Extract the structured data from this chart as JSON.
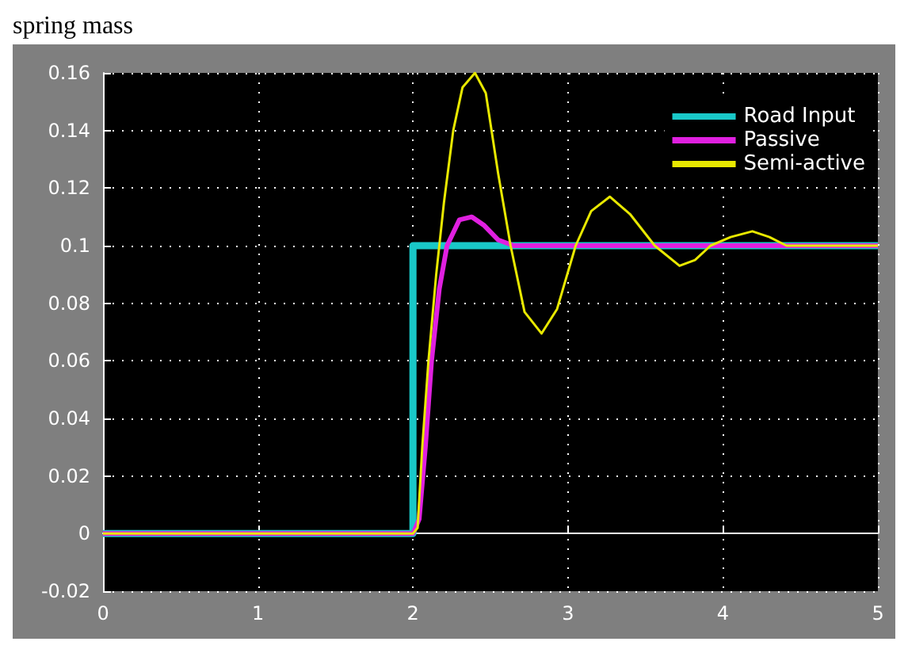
{
  "chart_data": {
    "type": "line",
    "title": "spring mass",
    "series": [
      {
        "name": "Road Input",
        "color": "#19c8c8",
        "x": [
          0,
          2,
          2,
          5
        ],
        "values": [
          0,
          0,
          0.1,
          0.1
        ]
      },
      {
        "name": "Passive",
        "color": "#e020e0",
        "x": [
          0,
          2,
          2.04,
          2.08,
          2.12,
          2.17,
          2.22,
          2.3,
          2.38,
          2.46,
          2.55,
          2.65,
          5
        ],
        "values": [
          0,
          0,
          0.005,
          0.03,
          0.06,
          0.085,
          0.1,
          0.109,
          0.11,
          0.107,
          0.102,
          0.1,
          0.1
        ]
      },
      {
        "name": "Semi-active",
        "color": "#e8e800",
        "x": [
          0,
          2,
          2.03,
          2.06,
          2.1,
          2.15,
          2.2,
          2.26,
          2.32,
          2.4,
          2.47,
          2.55,
          2.63,
          2.72,
          2.83,
          2.93,
          3.05,
          3.15,
          3.27,
          3.4,
          3.56,
          3.72,
          3.82,
          3.92,
          4.05,
          4.19,
          4.3,
          4.41,
          5
        ],
        "values": [
          0,
          0,
          0.002,
          0.03,
          0.06,
          0.09,
          0.115,
          0.14,
          0.155,
          0.16,
          0.153,
          0.125,
          0.1,
          0.077,
          0.0695,
          0.078,
          0.1,
          0.112,
          0.117,
          0.111,
          0.1,
          0.093,
          0.095,
          0.1,
          0.103,
          0.105,
          0.103,
          0.1,
          0.1
        ]
      }
    ],
    "xlim": [
      0,
      5
    ],
    "xticks": [
      0,
      1,
      2,
      3,
      4,
      5
    ],
    "ylim": [
      -0.02,
      0.16
    ],
    "yticks": [
      {
        "value": -0.02,
        "label": "-0.02"
      },
      0,
      0.02,
      0.04,
      0.06,
      0.08,
      0.1,
      0.12,
      0.14,
      0.16
    ],
    "grid": true,
    "legend": "top right",
    "marker": "none",
    "line_style": "solid"
  }
}
